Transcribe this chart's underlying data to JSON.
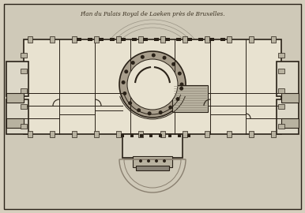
{
  "title": "Plan du Palais Royal de Laeken près de Bruxelles.",
  "bg_color": "#d6cfbe",
  "paper_color": "#cfc9b8",
  "wall_color": "#2a2218",
  "room_fill": "#e8e2d0",
  "light_fill": "#ddd8c8",
  "shadow_fill": "#b8b2a0",
  "dark_fill": "#8a8478",
  "semicircle_fill": "#c8c2b0",
  "figsize": [
    3.86,
    2.7
  ],
  "dpi": 100
}
